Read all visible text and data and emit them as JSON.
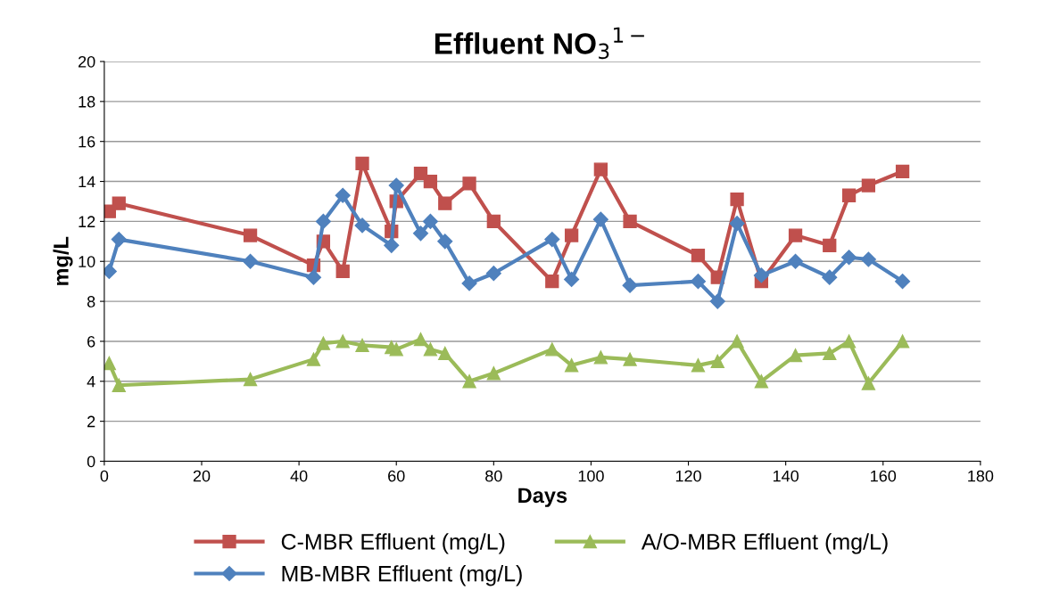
{
  "chart_data": {
    "type": "line",
    "title": "Effluent NO$_{3}$$^{1−}$",
    "xlabel": "Days",
    "ylabel": "mg/L",
    "x": [
      1,
      3,
      30,
      43,
      45,
      49,
      53,
      59,
      60,
      65,
      67,
      70,
      75,
      80,
      92,
      96,
      102,
      108,
      122,
      126,
      130,
      135,
      142,
      149,
      153,
      157,
      164
    ],
    "series": [
      {
        "name": "C-MBR Effluent (mg/L)",
        "color": "#c0504d",
        "marker": "square",
        "values": [
          12.5,
          12.9,
          11.3,
          9.8,
          11.0,
          9.5,
          14.9,
          11.5,
          13.0,
          14.4,
          14.0,
          12.9,
          13.9,
          12.0,
          9.0,
          11.3,
          14.6,
          12.0,
          10.3,
          9.2,
          13.1,
          9.0,
          11.3,
          10.8,
          13.3,
          13.8,
          14.5
        ]
      },
      {
        "name": "MB-MBR Effluent (mg/L)",
        "color": "#4f81bd",
        "marker": "diamond",
        "values": [
          9.5,
          11.1,
          10.0,
          9.2,
          12.0,
          13.3,
          11.8,
          10.8,
          13.8,
          11.4,
          12.0,
          11.0,
          8.9,
          9.4,
          11.1,
          9.1,
          12.1,
          8.8,
          9.0,
          8.0,
          11.9,
          9.3,
          10.0,
          9.2,
          10.2,
          10.1,
          9.0
        ]
      },
      {
        "name": "A/O-MBR Effluent (mg/L)",
        "color": "#9bbb59",
        "marker": "triangle",
        "values": [
          4.9,
          3.8,
          4.1,
          5.1,
          5.9,
          6.0,
          5.8,
          5.7,
          5.6,
          6.1,
          5.6,
          5.4,
          4.0,
          4.4,
          5.6,
          4.8,
          5.2,
          5.1,
          4.8,
          5.0,
          6.0,
          4.0,
          5.3,
          5.4,
          6.0,
          3.9,
          6.0
        ]
      }
    ],
    "xlim": [
      0,
      180
    ],
    "xticks": [
      0,
      20,
      40,
      60,
      80,
      100,
      120,
      140,
      160,
      180
    ],
    "ylim": [
      0,
      20
    ],
    "yticks": [
      0,
      2,
      4,
      6,
      8,
      10,
      12,
      14,
      16,
      18,
      20
    ],
    "grid": "y",
    "legend": "bottom",
    "line_style": "solid"
  }
}
